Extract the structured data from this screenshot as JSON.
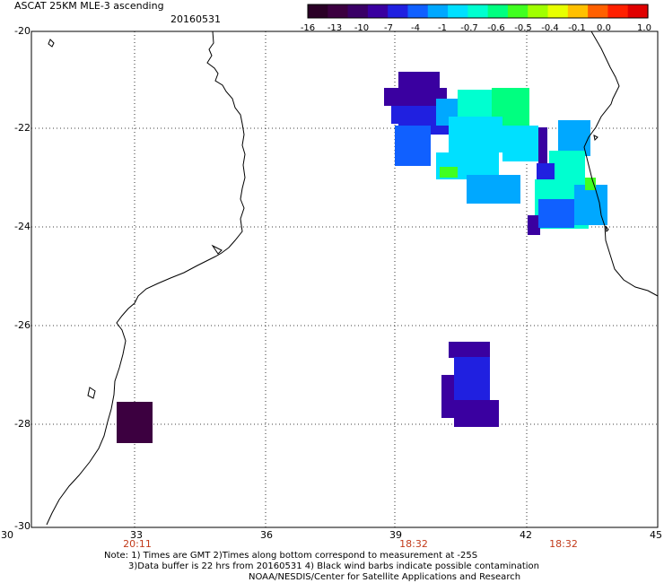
{
  "header": {
    "title": "ASCAT 25KM MLE-3 ascending",
    "date": "20160531"
  },
  "colorbar": {
    "labels": [
      "-16",
      "-13",
      "-10",
      "-7",
      "-4",
      "-1",
      "-0.7",
      "-0.6",
      "-0.5",
      "-0.4",
      "-0.1",
      "0.0",
      "1.0"
    ],
    "colors": [
      "#2a0026",
      "#3c0040",
      "#3a0066",
      "#3a00a0",
      "#2020e0",
      "#1060ff",
      "#00a8ff",
      "#00e0ff",
      "#00ffd0",
      "#00ff80",
      "#40ff20",
      "#a0ff00",
      "#e8ff00",
      "#ffc000",
      "#ff6000",
      "#ff2000",
      "#e00000"
    ]
  },
  "axes": {
    "y_ticks": [
      "-20",
      "-22",
      "-24",
      "-26",
      "-28",
      "-30"
    ],
    "x_ticks": [
      "30",
      "33",
      "36",
      "39",
      "42",
      "45"
    ],
    "time_labels": [
      "20:11",
      "18:32",
      "18:32"
    ]
  },
  "notes": {
    "line1": "Note: 1) Times are GMT 2)Times along bottom correspond to measurement at -25S",
    "line2": "3)Data buffer is 22 hrs from 20160531 4) Black wind barbs indicate possible contamination",
    "line3": "NOAA/NESDIS/Center for Satellite Applications and Research"
  },
  "map": {
    "lon_range": [
      30,
      45
    ],
    "lat_range": [
      -30,
      -20
    ],
    "colors": {
      "deep_purple": "#3c0040",
      "indigo": "#3a00a0",
      "blue": "#2020e0",
      "mid_blue": "#1060ff",
      "sky": "#00a8ff",
      "cyan": "#00e0ff",
      "aqua": "#00ffd0",
      "green": "#00ff80",
      "lime": "#40ff20"
    }
  }
}
